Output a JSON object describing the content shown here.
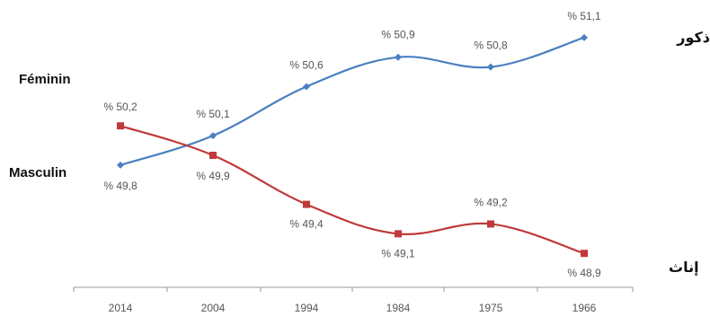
{
  "chart_data": {
    "type": "line",
    "categories": [
      "2014",
      "2004",
      "1994",
      "1984",
      "1975",
      "1966"
    ],
    "series": [
      {
        "name": "ذكور",
        "color": "#4a7fc1",
        "marker": "diamond",
        "values": [
          49.8,
          50.1,
          50.6,
          50.9,
          50.8,
          51.1
        ],
        "labels": [
          "% 49,8",
          "% 50,1",
          "% 50,6",
          "% 50,9",
          "% 50,8",
          "% 51,1"
        ]
      },
      {
        "name": "إناث",
        "color": "#c0393b",
        "marker": "square",
        "values": [
          50.2,
          49.9,
          49.4,
          49.1,
          49.2,
          48.9
        ],
        "labels": [
          "% 50,2",
          "% 49,9",
          "% 49,4",
          "% 49,1",
          "% 49,2",
          "% 48,9"
        ]
      }
    ],
    "ylim": [
      48.6,
      51.3
    ],
    "grid": false
  },
  "labels": {
    "feminin": "Féminin",
    "masculin": "Masculin",
    "males_ar": "ذكور",
    "females_ar": "إناث"
  }
}
